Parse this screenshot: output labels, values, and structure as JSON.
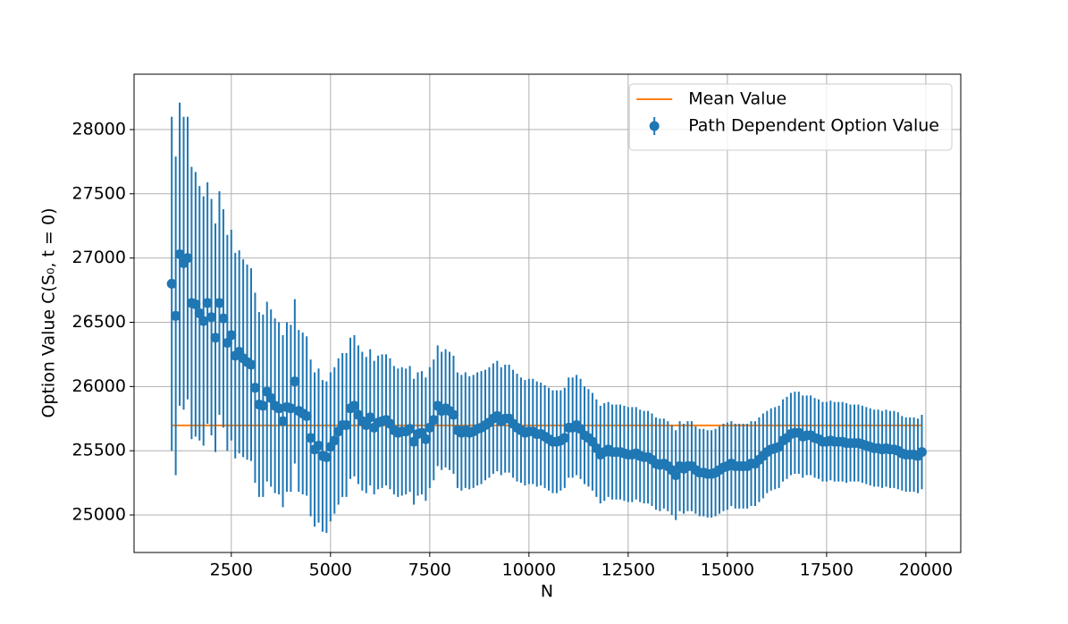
{
  "chart_data": {
    "type": "errorbar",
    "xlabel": "N",
    "ylabel": "Option Value C(S₀, t = 0)",
    "xlim": [
      50,
      20880
    ],
    "ylim": [
      24708,
      28431
    ],
    "xticks": [
      2500,
      5000,
      7500,
      10000,
      12500,
      15000,
      17500,
      20000
    ],
    "yticks": [
      25000,
      25500,
      26000,
      26500,
      27000,
      27500,
      28000
    ],
    "grid": true,
    "legend": "upper right",
    "hlines": [
      {
        "name": "Mean Value",
        "color": "#ff7f0e",
        "value": 25697
      }
    ],
    "x": [
      1000,
      1100,
      1200,
      1300,
      1400,
      1500,
      1600,
      1700,
      1800,
      1900,
      2000,
      2100,
      2200,
      2300,
      2400,
      2500,
      2600,
      2700,
      2800,
      2900,
      3000,
      3100,
      3200,
      3300,
      3400,
      3500,
      3600,
      3700,
      3800,
      3900,
      4000,
      4100,
      4200,
      4300,
      4400,
      4500,
      4600,
      4700,
      4800,
      4900,
      5000,
      5100,
      5200,
      5300,
      5400,
      5500,
      5600,
      5700,
      5800,
      5900,
      6000,
      6100,
      6200,
      6300,
      6400,
      6500,
      6600,
      6700,
      6800,
      6900,
      7000,
      7100,
      7200,
      7300,
      7400,
      7500,
      7600,
      7700,
      7800,
      7900,
      8000,
      8100,
      8200,
      8300,
      8400,
      8500,
      8600,
      8700,
      8800,
      8900,
      9000,
      9100,
      9200,
      9300,
      9400,
      9500,
      9600,
      9700,
      9800,
      9900,
      10000,
      10100,
      10200,
      10300,
      10400,
      10500,
      10600,
      10700,
      10800,
      10900,
      11000,
      11100,
      11200,
      11300,
      11400,
      11500,
      11600,
      11700,
      11800,
      11900,
      12000,
      12100,
      12200,
      12300,
      12400,
      12500,
      12600,
      12700,
      12800,
      12900,
      13000,
      13100,
      13200,
      13300,
      13400,
      13500,
      13600,
      13700,
      13800,
      13900,
      14000,
      14100,
      14200,
      14300,
      14400,
      14500,
      14600,
      14700,
      14800,
      14900,
      15000,
      15100,
      15200,
      15300,
      15400,
      15500,
      15600,
      15700,
      15800,
      15900,
      16000,
      16100,
      16200,
      16300,
      16400,
      16500,
      16600,
      16700,
      16800,
      16900,
      17000,
      17100,
      17200,
      17300,
      17400,
      17500,
      17600,
      17700,
      17800,
      17900,
      18000,
      18100,
      18200,
      18300,
      18400,
      18500,
      18600,
      18700,
      18800,
      18900,
      19000,
      19100,
      19200,
      19300,
      19400,
      19500,
      19600,
      19700,
      19800,
      19900
    ],
    "series": [
      {
        "name": "Path Dependent Option Value",
        "color": "#1f77b4",
        "values": [
          26800,
          26550,
          27030,
          26960,
          27000,
          26650,
          26640,
          26570,
          26510,
          26650,
          26540,
          26380,
          26650,
          26530,
          26340,
          26400,
          26240,
          26270,
          26220,
          26190,
          26170,
          25990,
          25860,
          25850,
          25960,
          25910,
          25850,
          25830,
          25730,
          25840,
          25830,
          26040,
          25810,
          25790,
          25770,
          25600,
          25510,
          25540,
          25460,
          25450,
          25530,
          25580,
          25650,
          25700,
          25700,
          25830,
          25850,
          25780,
          25730,
          25700,
          25760,
          25680,
          25720,
          25730,
          25740,
          25710,
          25660,
          25640,
          25650,
          25650,
          25670,
          25570,
          25630,
          25640,
          25590,
          25680,
          25740,
          25850,
          25810,
          25830,
          25810,
          25780,
          25660,
          25640,
          25660,
          25640,
          25650,
          25670,
          25680,
          25700,
          25720,
          25750,
          25770,
          25730,
          25750,
          25750,
          25710,
          25680,
          25660,
          25640,
          25650,
          25650,
          25630,
          25630,
          25610,
          25590,
          25570,
          25570,
          25580,
          25600,
          25680,
          25680,
          25700,
          25670,
          25620,
          25600,
          25570,
          25520,
          25470,
          25490,
          25510,
          25490,
          25490,
          25490,
          25480,
          25470,
          25470,
          25480,
          25460,
          25450,
          25450,
          25430,
          25400,
          25390,
          25400,
          25380,
          25350,
          25310,
          25380,
          25360,
          25380,
          25380,
          25350,
          25330,
          25330,
          25320,
          25320,
          25330,
          25350,
          25370,
          25380,
          25400,
          25380,
          25380,
          25380,
          25380,
          25400,
          25400,
          25430,
          25460,
          25490,
          25510,
          25520,
          25530,
          25580,
          25600,
          25630,
          25640,
          25640,
          25610,
          25620,
          25620,
          25600,
          25590,
          25570,
          25570,
          25580,
          25570,
          25570,
          25570,
          25560,
          25560,
          25560,
          25560,
          25550,
          25540,
          25530,
          25520,
          25520,
          25510,
          25520,
          25510,
          25510,
          25500,
          25480,
          25470,
          25470,
          25470,
          25460,
          25490
        ],
        "errors": [
          1300,
          1240,
          1180,
          1140,
          1100,
          1060,
          1030,
          990,
          970,
          940,
          920,
          890,
          870,
          850,
          840,
          820,
          800,
          790,
          770,
          760,
          750,
          740,
          720,
          710,
          700,
          690,
          680,
          670,
          670,
          660,
          650,
          640,
          630,
          630,
          620,
          610,
          600,
          600,
          590,
          590,
          580,
          570,
          570,
          560,
          560,
          550,
          550,
          540,
          540,
          530,
          530,
          520,
          520,
          520,
          510,
          510,
          500,
          500,
          500,
          490,
          490,
          490,
          480,
          480,
          480,
          470,
          470,
          470,
          460,
          460,
          460,
          460,
          450,
          450,
          450,
          440,
          440,
          440,
          440,
          430,
          430,
          430,
          430,
          420,
          420,
          420,
          420,
          420,
          410,
          410,
          410,
          410,
          410,
          400,
          400,
          400,
          400,
          400,
          390,
          390,
          390,
          390,
          390,
          390,
          380,
          380,
          380,
          380,
          380,
          380,
          370,
          370,
          370,
          370,
          370,
          370,
          370,
          360,
          360,
          360,
          360,
          360,
          360,
          360,
          350,
          350,
          350,
          350,
          350,
          350,
          350,
          350,
          340,
          340,
          340,
          340,
          340,
          340,
          340,
          340,
          340,
          330,
          330,
          330,
          330,
          330,
          330,
          330,
          330,
          330,
          320,
          320,
          320,
          320,
          320,
          320,
          320,
          320,
          320,
          320,
          310,
          310,
          310,
          310,
          310,
          310,
          310,
          310,
          310,
          310,
          310,
          300,
          300,
          300,
          300,
          300,
          300,
          300,
          300,
          300,
          300,
          300,
          300,
          300,
          290,
          290,
          290,
          290,
          290,
          290
        ]
      }
    ]
  }
}
